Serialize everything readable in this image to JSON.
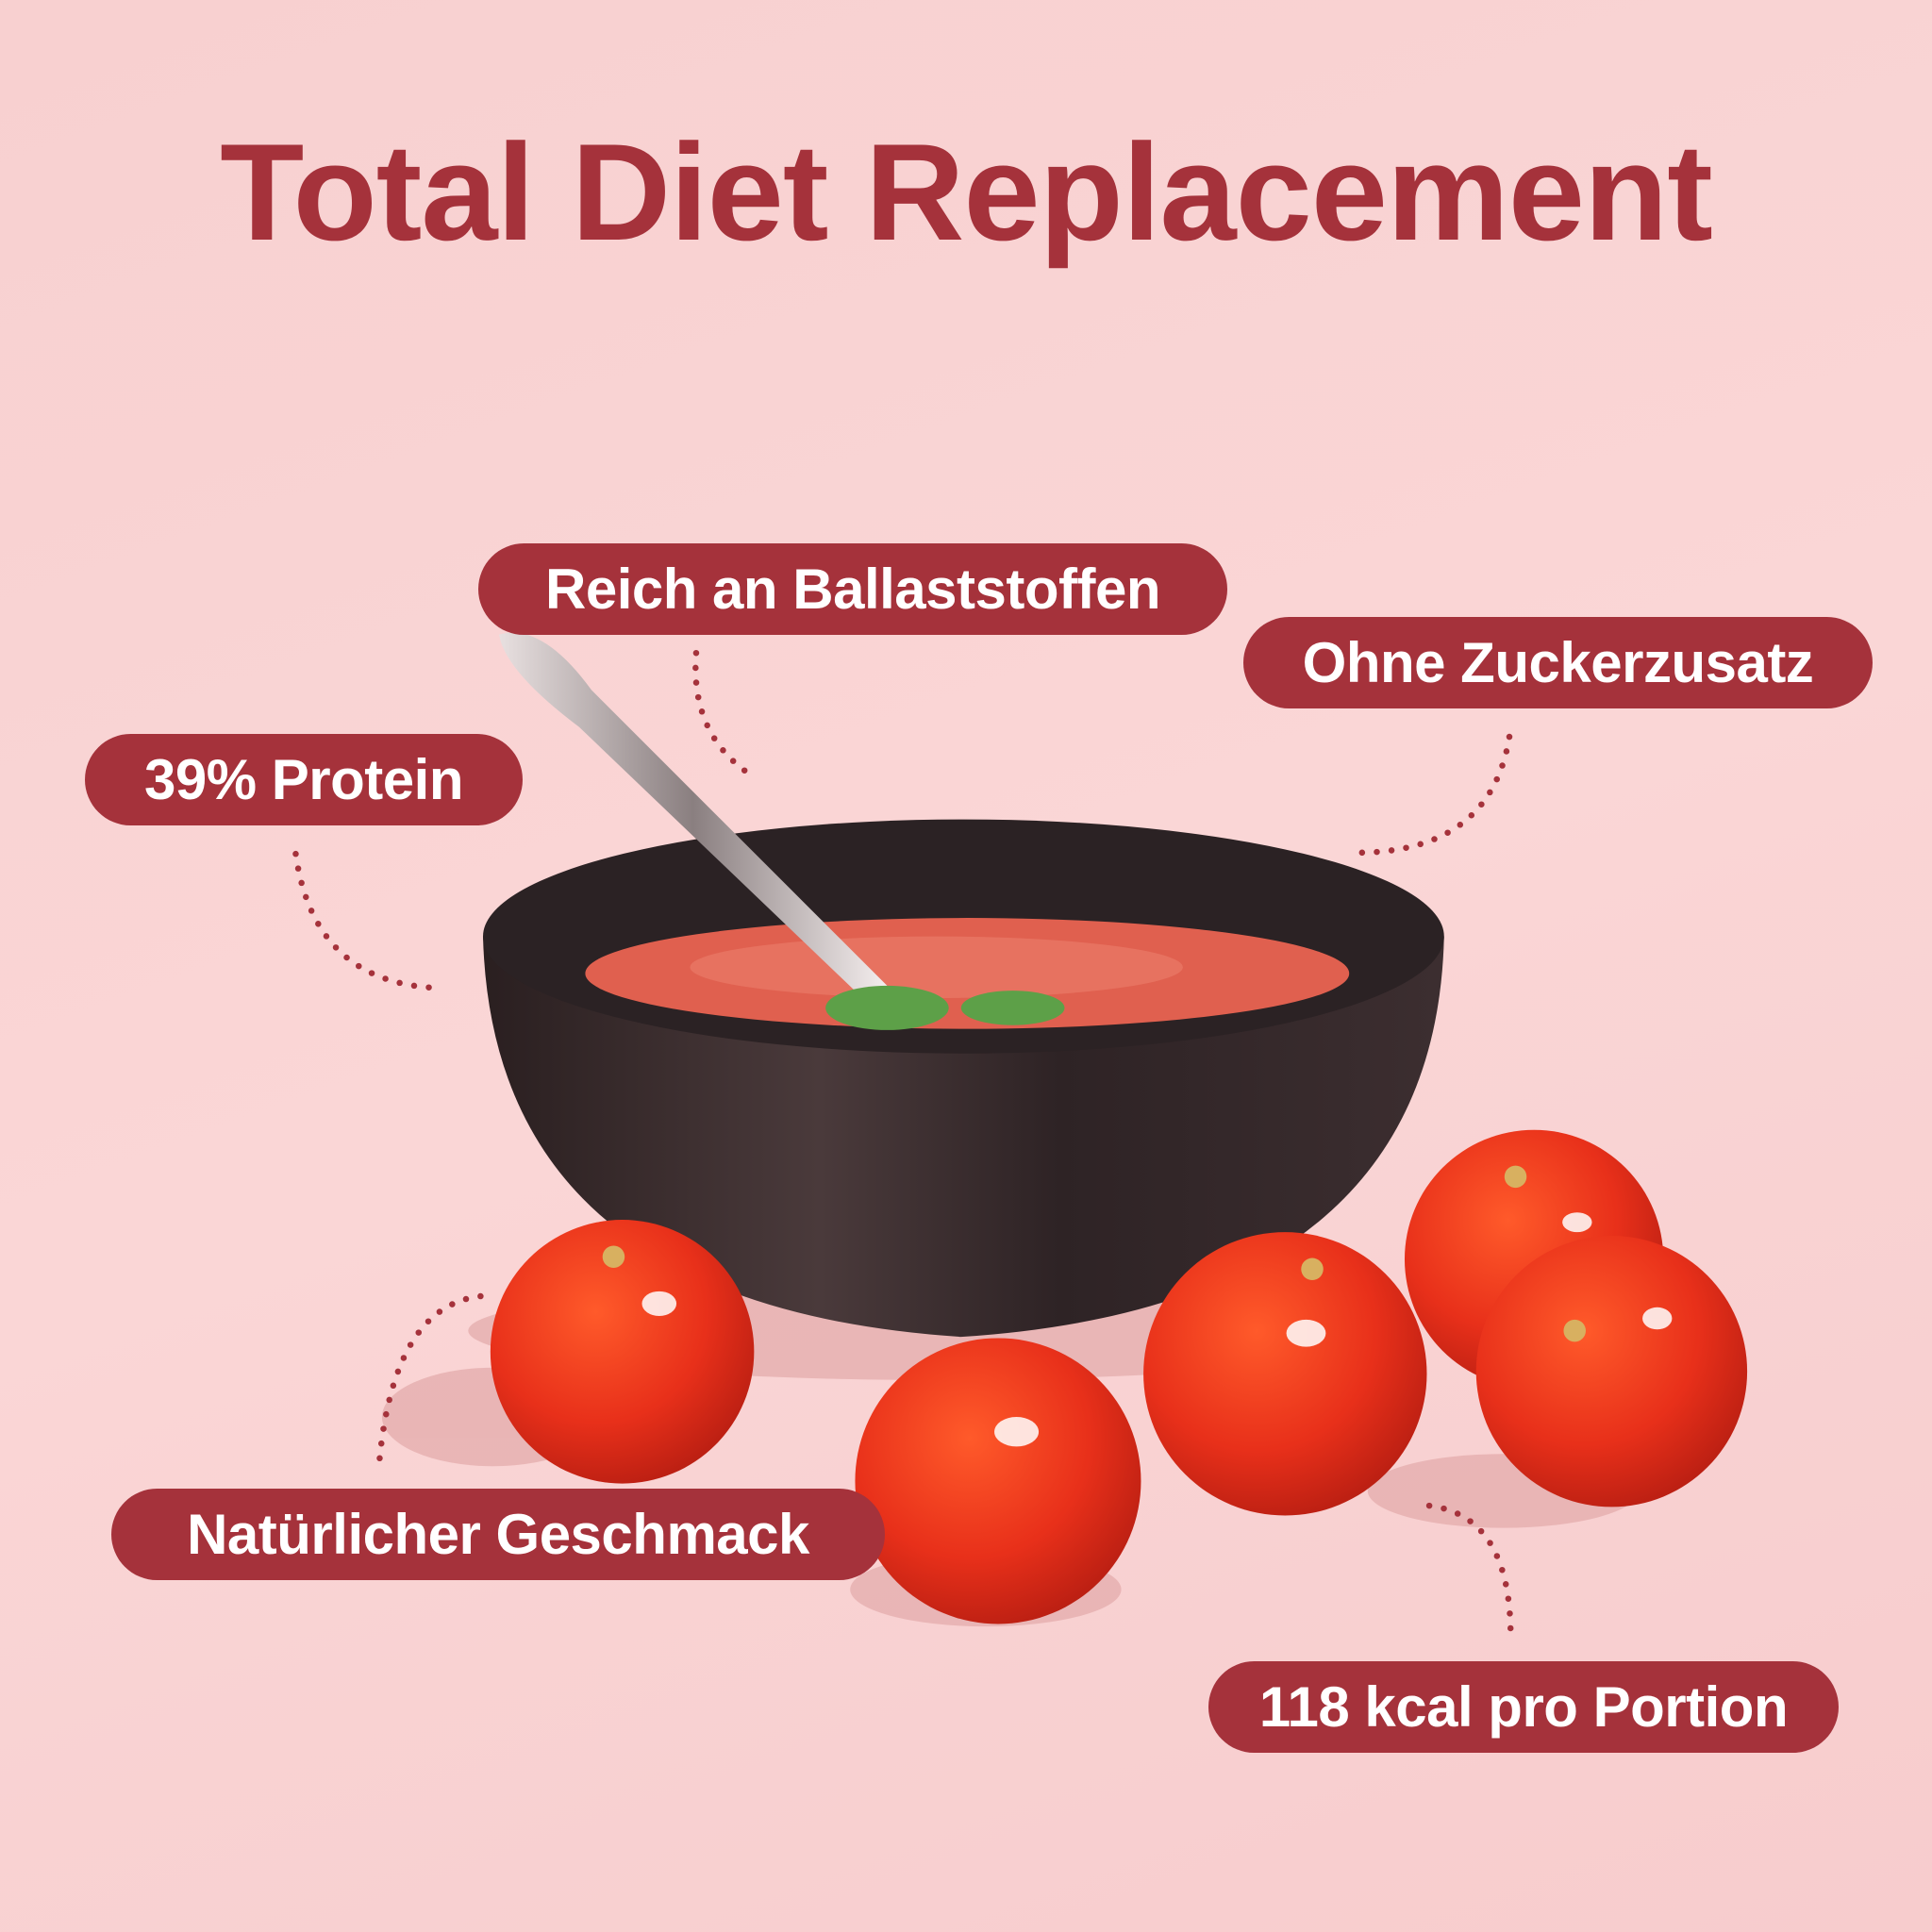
{
  "title": "Total Diet Replacement",
  "features": [
    {
      "label": "Reich an Ballaststoffen"
    },
    {
      "label": "Ohne Zuckerzusatz"
    },
    {
      "label": "39% Protein"
    },
    {
      "label": "Natürlicher Geschmack"
    },
    {
      "label": "118 kcal pro Portion"
    }
  ],
  "colors": {
    "accent": "#a5323b",
    "background": "#f9d3d3",
    "text_on_accent": "#ffffff"
  },
  "image": {
    "subject": "tomato-soup-bowl-with-cherry-tomatoes"
  }
}
